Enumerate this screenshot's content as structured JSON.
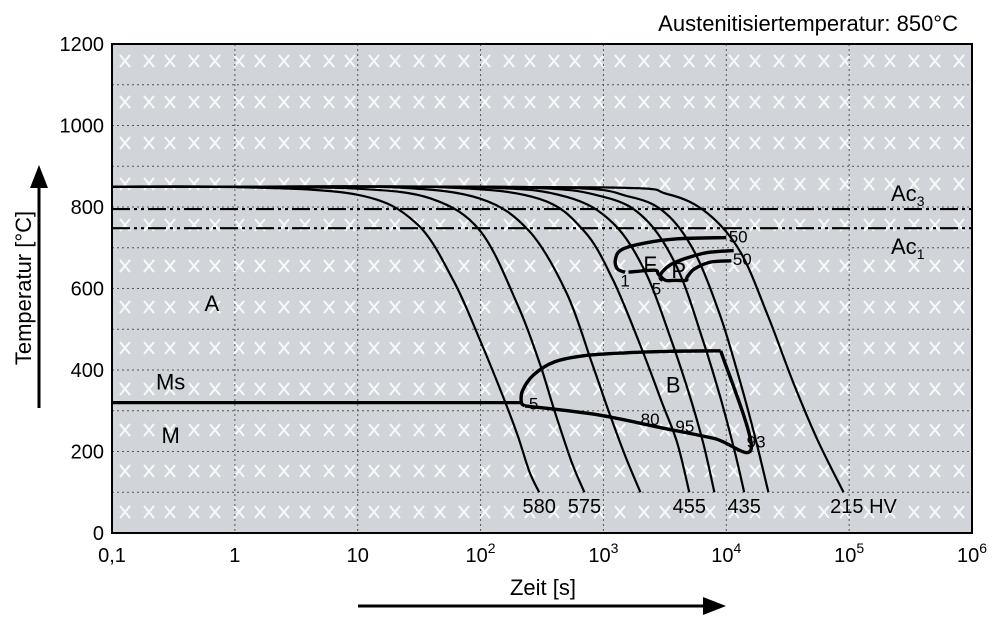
{
  "chart_data": {
    "type": "line",
    "title": "Austenitisiertemperatur: 850°C",
    "xlabel": "Zeit [s]",
    "ylabel": "Temperatur [°C]",
    "x_scale": "log",
    "xlim": [
      0.1,
      1000000
    ],
    "ylim": [
      0,
      1200
    ],
    "x_ticks": [
      {
        "value": 0.1,
        "label": "0,1"
      },
      {
        "value": 1,
        "label": "1"
      },
      {
        "value": 10,
        "label": "10"
      },
      {
        "value": 100,
        "label": "10",
        "exp": "2"
      },
      {
        "value": 1000,
        "label": "10",
        "exp": "3"
      },
      {
        "value": 10000,
        "label": "10",
        "exp": "4"
      },
      {
        "value": 100000,
        "label": "10",
        "exp": "5"
      },
      {
        "value": 1000000,
        "label": "10",
        "exp": "6"
      }
    ],
    "y_ticks": [
      0,
      200,
      400,
      600,
      800,
      1000,
      1200
    ],
    "grid": true,
    "colors": {
      "plot_bg": "#d1d5da",
      "line": "#000000",
      "grid": "#555555",
      "pattern": "#ffffff"
    },
    "reference_lines": [
      {
        "name": "Ac3",
        "label": "Ac",
        "sub": "3",
        "y": 795
      },
      {
        "name": "Ac1",
        "label": "Ac",
        "sub": "1",
        "y": 748
      }
    ],
    "ms_line": {
      "label": "Ms",
      "y": 320,
      "x_end": 220
    },
    "cooling_curves": [
      {
        "hardness": "580",
        "points": [
          [
            0.1,
            850
          ],
          [
            1,
            849
          ],
          [
            10,
            830
          ],
          [
            30,
            760
          ],
          [
            60,
            620
          ],
          [
            100,
            470
          ],
          [
            150,
            340
          ],
          [
            200,
            240
          ],
          [
            250,
            150
          ],
          [
            300,
            100
          ]
        ]
      },
      {
        "hardness": "575",
        "points": [
          [
            0.1,
            850
          ],
          [
            1,
            849
          ],
          [
            10,
            845
          ],
          [
            40,
            820
          ],
          [
            100,
            740
          ],
          [
            200,
            560
          ],
          [
            300,
            420
          ],
          [
            400,
            300
          ],
          [
            550,
            175
          ],
          [
            700,
            100
          ]
        ]
      },
      {
        "hardness": null,
        "points": [
          [
            0.1,
            850
          ],
          [
            1,
            850
          ],
          [
            20,
            848
          ],
          [
            100,
            820
          ],
          [
            250,
            740
          ],
          [
            500,
            590
          ],
          [
            800,
            420
          ],
          [
            1100,
            300
          ],
          [
            1500,
            190
          ],
          [
            2000,
            100
          ]
        ]
      },
      {
        "hardness": "455",
        "points": [
          [
            0.1,
            850
          ],
          [
            1,
            850
          ],
          [
            50,
            848
          ],
          [
            300,
            820
          ],
          [
            700,
            740
          ],
          [
            1200,
            620
          ],
          [
            2000,
            460
          ],
          [
            3000,
            320
          ],
          [
            4000,
            220
          ],
          [
            5000,
            100
          ]
        ]
      },
      {
        "hardness": null,
        "points": [
          [
            0.1,
            850
          ],
          [
            1,
            850
          ],
          [
            100,
            848
          ],
          [
            500,
            825
          ],
          [
            1200,
            760
          ],
          [
            2200,
            640
          ],
          [
            3500,
            480
          ],
          [
            5000,
            340
          ],
          [
            6500,
            220
          ],
          [
            8000,
            100
          ]
        ]
      },
      {
        "hardness": "435",
        "points": [
          [
            0.1,
            850
          ],
          [
            1,
            850
          ],
          [
            200,
            848
          ],
          [
            1000,
            825
          ],
          [
            2200,
            770
          ],
          [
            4000,
            650
          ],
          [
            6500,
            470
          ],
          [
            9000,
            330
          ],
          [
            11500,
            210
          ],
          [
            14000,
            100
          ]
        ]
      },
      {
        "hardness": null,
        "points": [
          [
            0.1,
            850
          ],
          [
            1,
            850
          ],
          [
            400,
            848
          ],
          [
            1600,
            826
          ],
          [
            3200,
            785
          ],
          [
            5500,
            690
          ],
          [
            9000,
            530
          ],
          [
            13000,
            370
          ],
          [
            17000,
            240
          ],
          [
            22000,
            100
          ]
        ]
      },
      {
        "hardness": "215 HV",
        "points": [
          [
            0.1,
            850
          ],
          [
            1,
            850
          ],
          [
            1000,
            848
          ],
          [
            3300,
            832
          ],
          [
            7000,
            785
          ],
          [
            13000,
            690
          ],
          [
            22000,
            530
          ],
          [
            35000,
            370
          ],
          [
            55000,
            230
          ],
          [
            90000,
            100
          ]
        ]
      }
    ],
    "transformation_lines": [
      {
        "name": "ferrite-start",
        "points": [
          [
            10000,
            725
          ],
          [
            4000,
            722
          ],
          [
            2200,
            712
          ],
          [
            1400,
            695
          ],
          [
            1250,
            670
          ],
          [
            1300,
            648
          ],
          [
            1500,
            640
          ]
        ]
      },
      {
        "name": "ferrite-pearlite-end",
        "points": [
          [
            11000,
            668
          ],
          [
            7500,
            665
          ],
          [
            5500,
            648
          ],
          [
            4800,
            628
          ],
          [
            4700,
            620
          ],
          [
            3800,
            620
          ],
          [
            3200,
            620
          ],
          [
            2800,
            635
          ],
          [
            2600,
            645
          ],
          [
            1600,
            640
          ]
        ]
      },
      {
        "name": "pearlite-start",
        "points": [
          [
            11500,
            693
          ],
          [
            7000,
            688
          ],
          [
            4800,
            675
          ],
          [
            3600,
            660
          ],
          [
            3000,
            640
          ],
          [
            2900,
            625
          ],
          [
            3050,
            620
          ]
        ]
      },
      {
        "name": "bainite-start",
        "points": [
          [
            9000,
            447
          ],
          [
            3500,
            446
          ],
          [
            1500,
            442
          ],
          [
            700,
            435
          ],
          [
            400,
            420
          ],
          [
            270,
            388
          ],
          [
            220,
            350
          ],
          [
            215,
            320
          ],
          [
            230,
            312
          ]
        ]
      },
      {
        "name": "bainite-end",
        "points": [
          [
            230,
            312
          ],
          [
            900,
            290
          ],
          [
            3000,
            258
          ],
          [
            8000,
            232
          ],
          [
            16000,
            210
          ],
          [
            9000,
            447
          ]
        ]
      }
    ],
    "phase_labels": [
      {
        "text": "A",
        "x": 0.65,
        "y": 565
      },
      {
        "text": "F",
        "x": 2400,
        "y": 660
      },
      {
        "text": "P",
        "x": 4100,
        "y": 645
      },
      {
        "text": "B",
        "x": 3700,
        "y": 365
      },
      {
        "text": "M",
        "x": 0.3,
        "y": 240
      }
    ],
    "annotations": [
      {
        "text": "1",
        "x": 1500,
        "y": 620
      },
      {
        "text": "5",
        "x": 2700,
        "y": 600
      },
      {
        "text": "50",
        "x": 12500,
        "y": 728
      },
      {
        "text": "50",
        "x": 13500,
        "y": 672
      },
      {
        "text": "5",
        "x": 270,
        "y": 318
      },
      {
        "text": "80",
        "x": 2400,
        "y": 280
      },
      {
        "text": "95",
        "x": 4600,
        "y": 262
      },
      {
        "text": "93",
        "x": 17500,
        "y": 225
      }
    ],
    "arrows": [
      "y-axis-up",
      "x-axis-right"
    ]
  }
}
